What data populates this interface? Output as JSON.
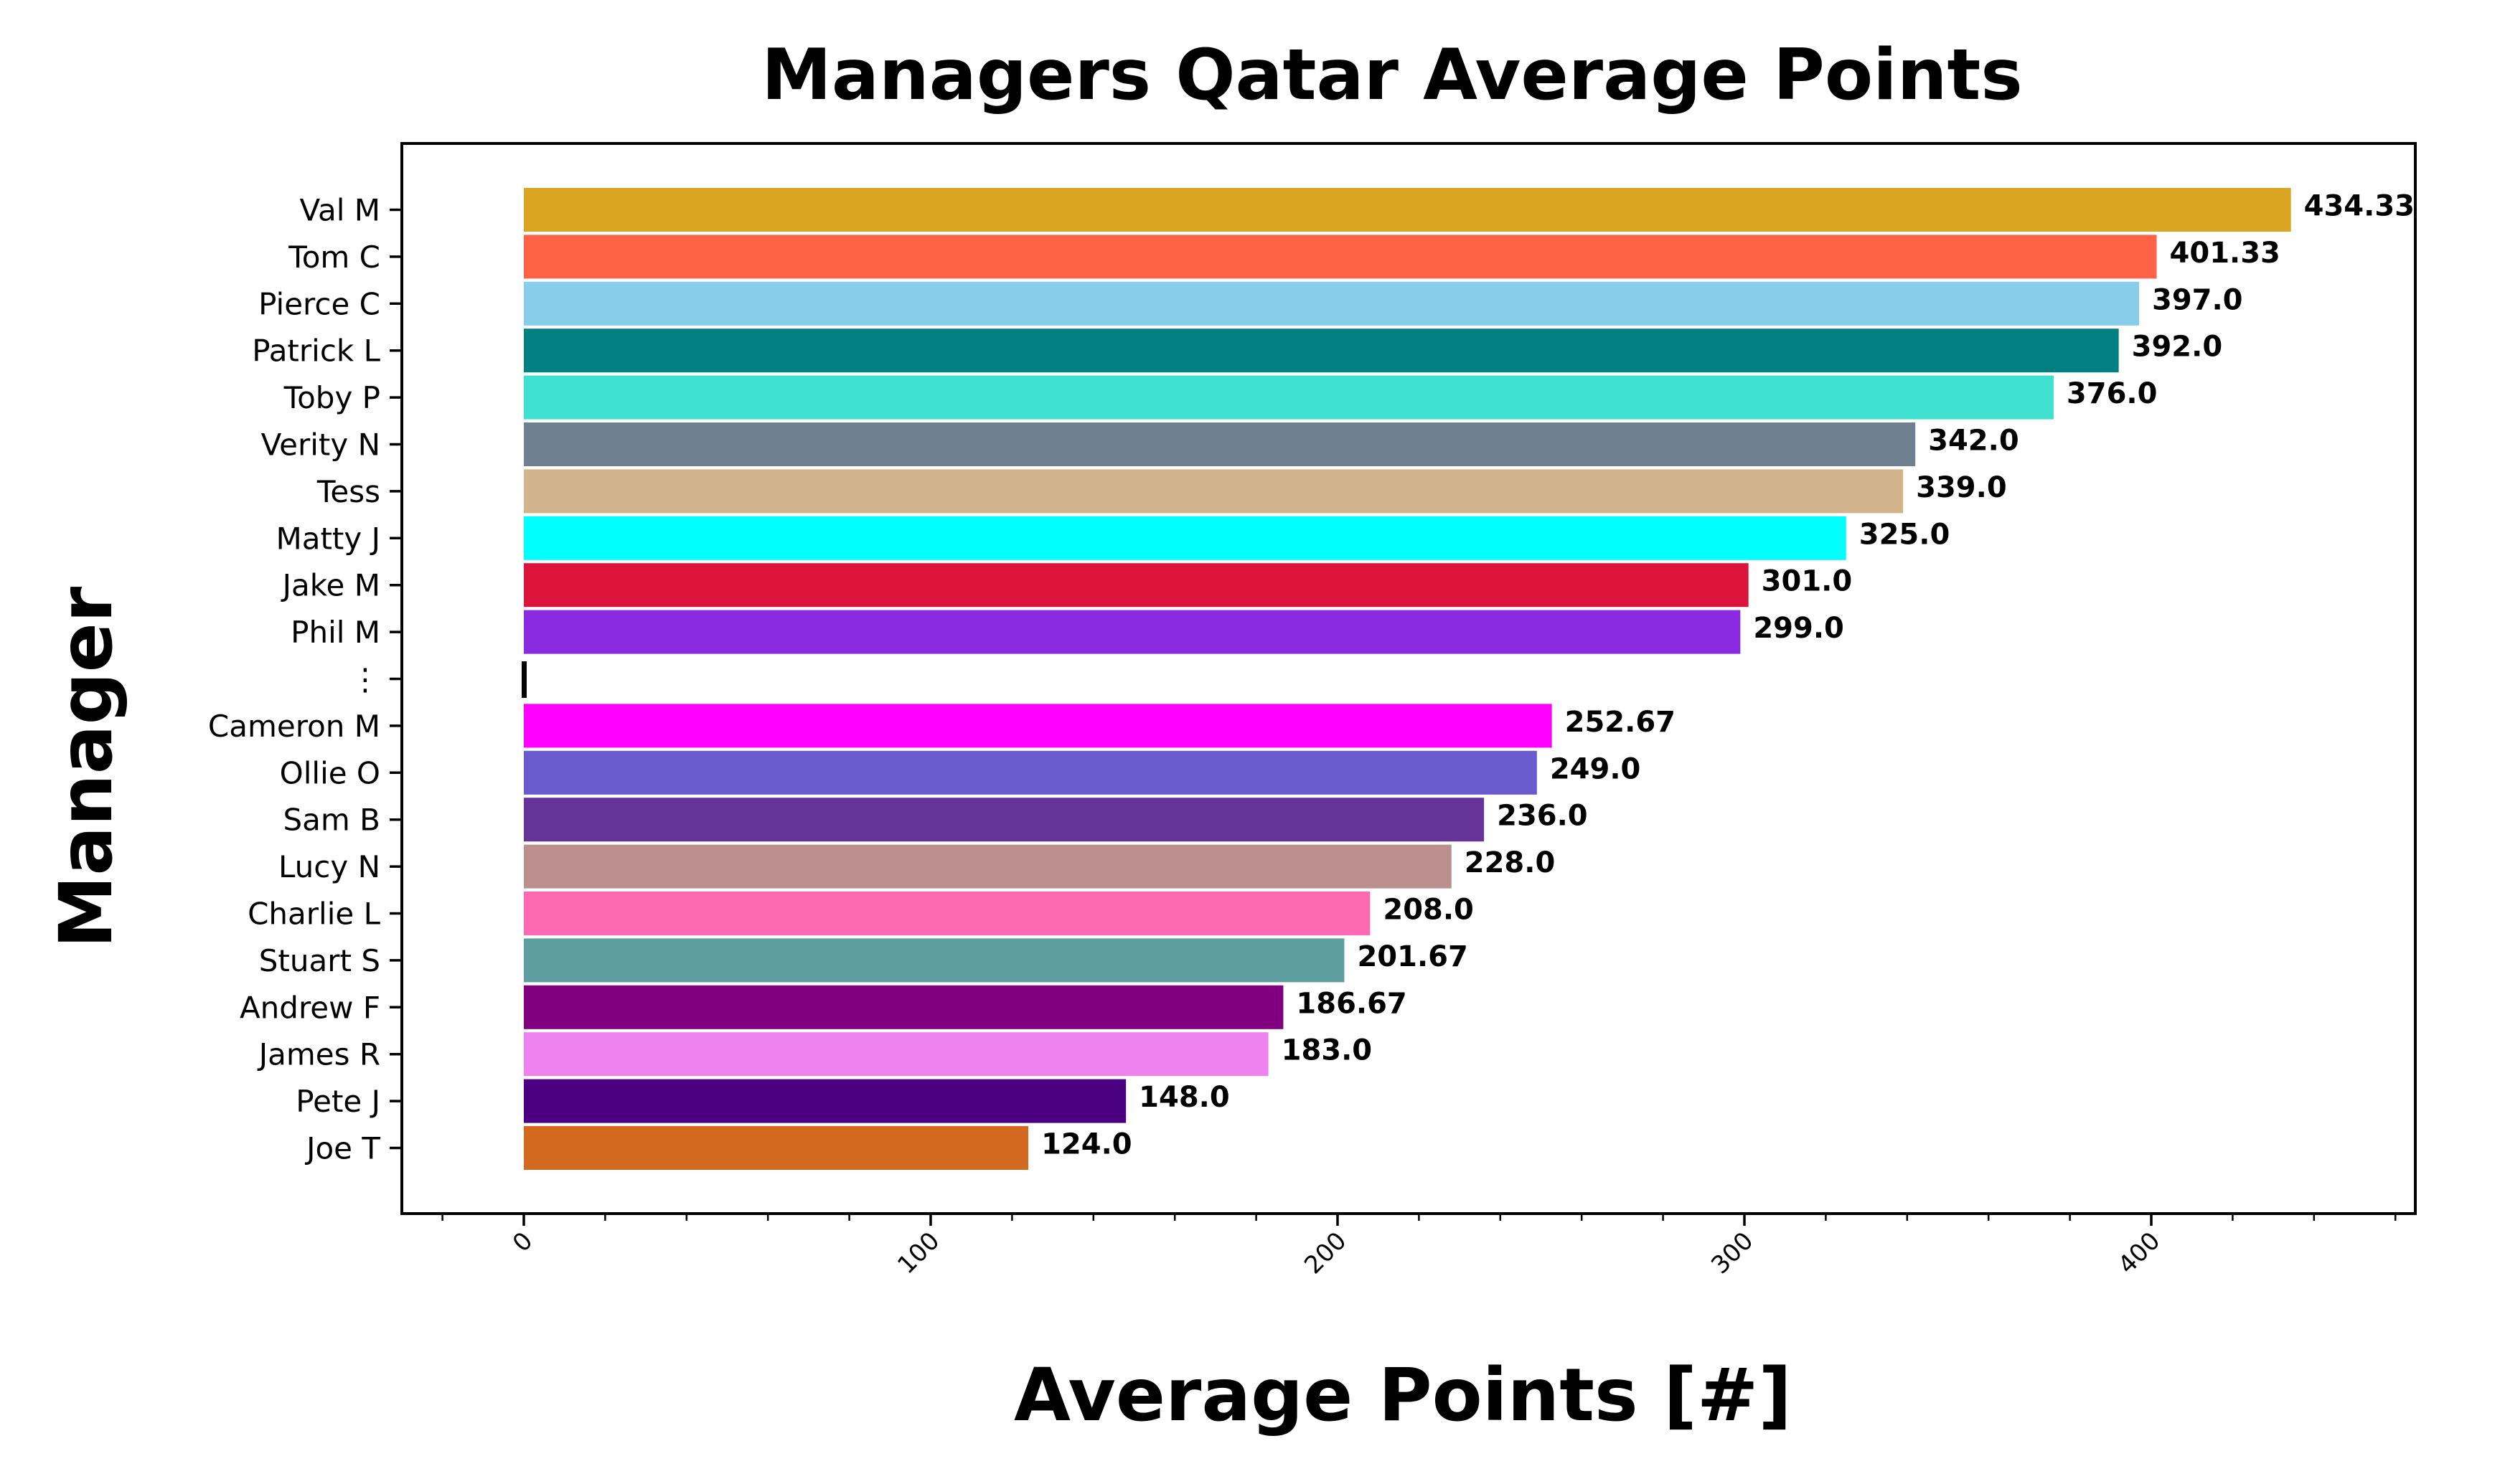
{
  "chart_data": {
    "type": "bar",
    "orientation": "horizontal",
    "title": "Managers Qatar Average Points",
    "xlabel": "Average Points [#]",
    "ylabel": "Manager",
    "xlim": [
      -30,
      460
    ],
    "xticks": [
      "0",
      "100",
      "200",
      "300",
      "400"
    ],
    "grid": false,
    "legend": "none",
    "categories": [
      "Val M",
      "Tom C",
      "Pierce C",
      "Patrick L",
      "Toby P",
      "Verity N",
      "Tess",
      "Matty J",
      "Jake M",
      "Phil M",
      "⋮",
      "Cameron M",
      "Ollie O",
      "Sam B",
      "Lucy N",
      "Charlie L",
      "Stuart S",
      "Andrew F",
      "James R",
      "Pete J",
      "Joe T"
    ],
    "values": [
      434.33,
      401.33,
      397.0,
      392.0,
      376.0,
      342.0,
      339.0,
      325.0,
      301.0,
      299.0,
      0,
      252.67,
      249.0,
      236.0,
      228.0,
      208.0,
      201.67,
      186.67,
      183.0,
      148.0,
      124.0
    ],
    "value_labels": [
      "434.33",
      "401.33",
      "397.0",
      "392.0",
      "376.0",
      "342.0",
      "339.0",
      "325.0",
      "301.0",
      "299.0",
      "",
      "252.67",
      "249.0",
      "236.0",
      "228.0",
      "208.0",
      "201.67",
      "186.67",
      "183.0",
      "148.0",
      "124.0"
    ],
    "colors": [
      "#DAA520",
      "#FF6347",
      "#87CEEB",
      "#008080",
      "#40E0D0",
      "#708090",
      "#D2B48C",
      "#00FFFF",
      "#DC143C",
      "#8A2BE2",
      "#000000",
      "#FF00FF",
      "#6A5ACD",
      "#663399",
      "#BC8F8F",
      "#FF69B4",
      "#5F9EA0",
      "#800080",
      "#EE82EE",
      "#4B0082",
      "#D2691E"
    ]
  }
}
